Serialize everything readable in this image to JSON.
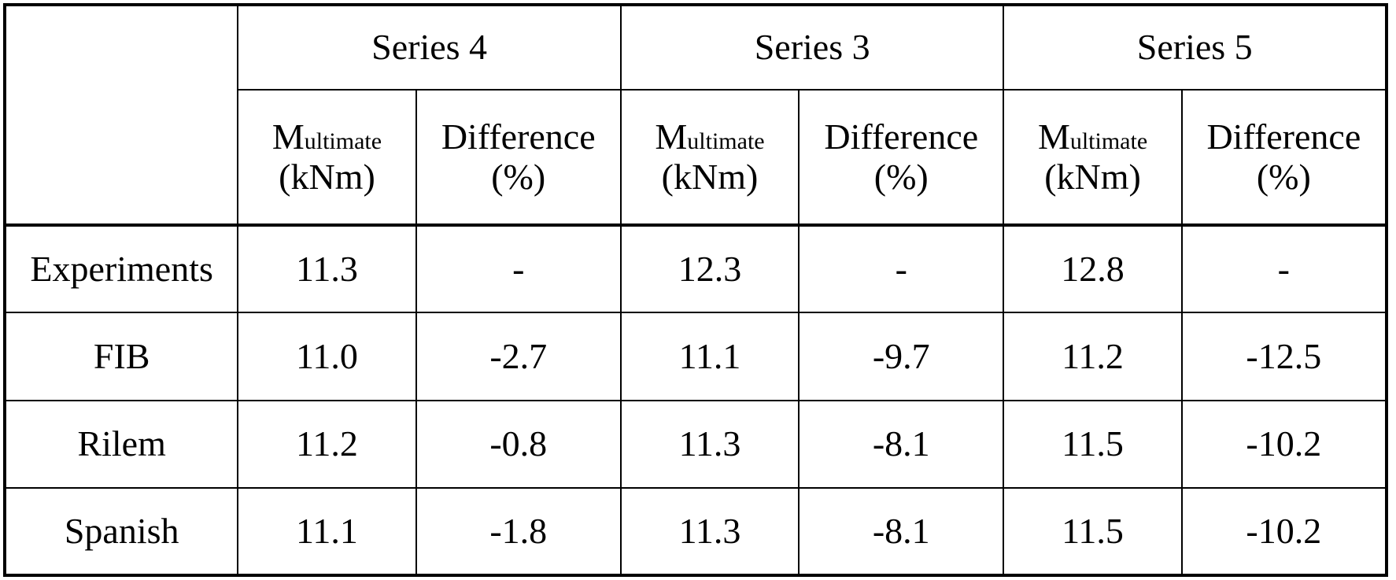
{
  "table": {
    "corner": "",
    "series_headers": [
      "Series 4",
      "Series 3",
      "Series 5"
    ],
    "sub_headers": {
      "m_symbol": "M",
      "m_subscript": "ultimate",
      "m_unit": "(kNm)",
      "diff_label": "Difference",
      "diff_unit": "(%)"
    },
    "rows": [
      {
        "label": "Experiments",
        "cells": [
          "11.3",
          "-",
          "12.3",
          "-",
          "12.8",
          "-"
        ]
      },
      {
        "label": "FIB",
        "cells": [
          "11.0",
          "-2.7",
          "11.1",
          "-9.7",
          "11.2",
          "-12.5"
        ]
      },
      {
        "label": "Rilem",
        "cells": [
          "11.2",
          "-0.8",
          "11.3",
          "-8.1",
          "11.5",
          "-10.2"
        ]
      },
      {
        "label": "Spanish",
        "cells": [
          "11.1",
          "-1.8",
          "11.3",
          "-8.1",
          "11.5",
          "-10.2"
        ]
      }
    ]
  }
}
